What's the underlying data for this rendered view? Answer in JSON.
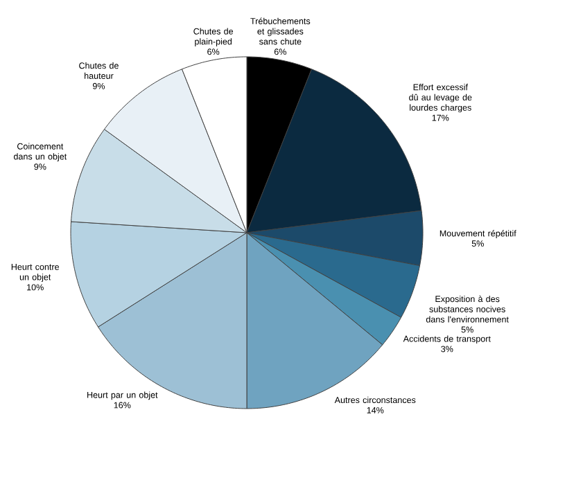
{
  "chart_data": {
    "type": "pie",
    "categories": [
      "Trébuchements et glissades sans chute",
      "Effort excessif dû au levage de lourdes charges",
      "Mouvement répétitif",
      "Exposition à des substances nocives dans l'environnement",
      "Accidents de transport",
      "Autres circonstances",
      "Heurt par un objet",
      "Heurt contre un objet",
      "Coincement dans un objet",
      "Chutes de hauteur",
      "Chutes de plain-pied"
    ],
    "values": [
      6,
      17,
      5,
      5,
      3,
      14,
      16,
      10,
      9,
      9,
      6
    ],
    "value_labels": [
      "6%",
      "17%",
      "5%",
      "5%",
      "3%",
      "14%",
      "16%",
      "10%",
      "9%",
      "9%",
      "6%"
    ],
    "colors": [
      "#000000",
      "#0b2a40",
      "#1c4a6a",
      "#2a6a8e",
      "#4a90b0",
      "#6fa3c0",
      "#9dc0d5",
      "#b5d2e2",
      "#c8dde8",
      "#e8f0f6",
      "#ffffff"
    ]
  }
}
